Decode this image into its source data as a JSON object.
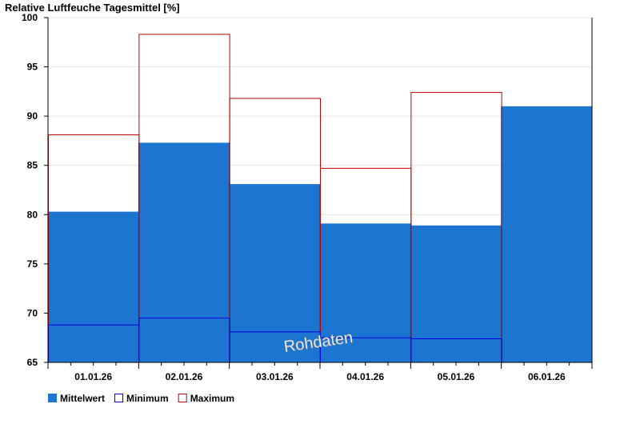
{
  "chart_data": {
    "type": "bar",
    "title": "Relative Luftfeuche Tagesmittel [%]",
    "xlabel": "",
    "ylabel": "",
    "categories": [
      "01.01.26",
      "02.01.26",
      "03.01.26",
      "04.01.26",
      "05.01.26",
      "06.01.26"
    ],
    "ylim": [
      65,
      100
    ],
    "yticks": [
      65,
      70,
      75,
      80,
      85,
      90,
      95,
      100
    ],
    "grid": true,
    "legend_position": "bottom-left",
    "series": [
      {
        "name": "Mittelwert",
        "color": "#1c75d0",
        "style": "filled-bar",
        "values": [
          80.3,
          87.3,
          83.1,
          79.1,
          78.9,
          91.0
        ]
      },
      {
        "name": "Minimum",
        "color": "#0000e0",
        "style": "step-line",
        "values": [
          68.8,
          69.5,
          68.1,
          67.5,
          67.4,
          null
        ]
      },
      {
        "name": "Maximum",
        "color": "#c00000",
        "style": "step-line",
        "values": [
          88.1,
          98.3,
          91.8,
          84.7,
          92.4,
          null
        ]
      }
    ],
    "annotation": "Rohdaten"
  }
}
